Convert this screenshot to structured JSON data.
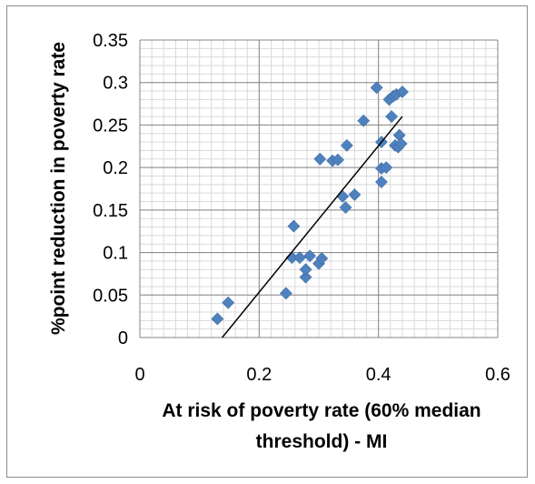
{
  "chart_data": {
    "type": "scatter",
    "title": "",
    "xlabel_lines": [
      "At risk of poverty rate (60% median",
      "threshold) - MI"
    ],
    "ylabel": "%point reduction in poverty rate",
    "xlim": [
      0,
      0.6
    ],
    "ylim": [
      0,
      0.35
    ],
    "x_ticks": [
      "0",
      "0.2",
      "0.4",
      "0.6"
    ],
    "y_ticks": [
      "0",
      "0.05",
      "0.1",
      "0.15",
      "0.2",
      "0.25",
      "0.3",
      "0.35"
    ],
    "grid": true,
    "legend": "none",
    "marker": "diamond",
    "marker_color": "#4f81bd",
    "trendline": {
      "type": "linear",
      "color": "#000000",
      "x": [
        0.138,
        0.44
      ],
      "y": [
        0.0,
        0.26
      ]
    },
    "points": [
      {
        "x": 0.13,
        "y": 0.022
      },
      {
        "x": 0.148,
        "y": 0.041
      },
      {
        "x": 0.245,
        "y": 0.052
      },
      {
        "x": 0.255,
        "y": 0.094
      },
      {
        "x": 0.258,
        "y": 0.131
      },
      {
        "x": 0.268,
        "y": 0.094
      },
      {
        "x": 0.278,
        "y": 0.071
      },
      {
        "x": 0.278,
        "y": 0.08
      },
      {
        "x": 0.285,
        "y": 0.096
      },
      {
        "x": 0.3,
        "y": 0.087
      },
      {
        "x": 0.305,
        "y": 0.093
      },
      {
        "x": 0.302,
        "y": 0.21
      },
      {
        "x": 0.323,
        "y": 0.208
      },
      {
        "x": 0.332,
        "y": 0.209
      },
      {
        "x": 0.34,
        "y": 0.166
      },
      {
        "x": 0.345,
        "y": 0.153
      },
      {
        "x": 0.347,
        "y": 0.226
      },
      {
        "x": 0.36,
        "y": 0.168
      },
      {
        "x": 0.375,
        "y": 0.255
      },
      {
        "x": 0.397,
        "y": 0.294
      },
      {
        "x": 0.405,
        "y": 0.183
      },
      {
        "x": 0.405,
        "y": 0.199
      },
      {
        "x": 0.405,
        "y": 0.23
      },
      {
        "x": 0.413,
        "y": 0.2
      },
      {
        "x": 0.418,
        "y": 0.28
      },
      {
        "x": 0.422,
        "y": 0.26
      },
      {
        "x": 0.425,
        "y": 0.284
      },
      {
        "x": 0.428,
        "y": 0.226
      },
      {
        "x": 0.43,
        "y": 0.286
      },
      {
        "x": 0.433,
        "y": 0.224
      },
      {
        "x": 0.435,
        "y": 0.238
      },
      {
        "x": 0.438,
        "y": 0.228
      },
      {
        "x": 0.44,
        "y": 0.289
      }
    ]
  }
}
